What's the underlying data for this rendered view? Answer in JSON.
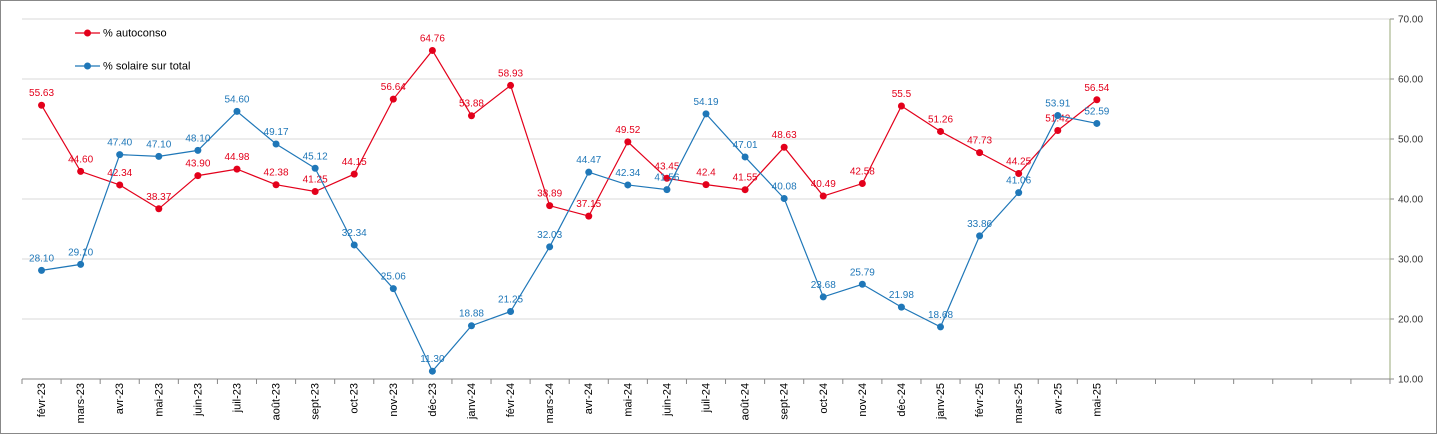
{
  "chart_data": {
    "type": "line",
    "categories": [
      "févr-23",
      "mars-23",
      "avr-23",
      "mai-23",
      "juin-23",
      "juil-23",
      "août-23",
      "sept-23",
      "oct-23",
      "nov-23",
      "déc-23",
      "janv-24",
      "févr-24",
      "mars-24",
      "avr-24",
      "mai-24",
      "juin-24",
      "juil-24",
      "août-24",
      "sept-24",
      "oct-24",
      "nov-24",
      "déc-24",
      "janv-25",
      "févr-25",
      "mars-25",
      "avr-25",
      "mai-25",
      null,
      null,
      null,
      null,
      null,
      null,
      null
    ],
    "series": [
      {
        "name": "% autoconso",
        "color": "#e3001b",
        "values": [
          55.63,
          44.6,
          42.34,
          38.37,
          43.9,
          44.98,
          42.38,
          41.25,
          44.15,
          56.64,
          64.76,
          53.88,
          58.93,
          38.89,
          37.15,
          49.52,
          43.45,
          42.4,
          41.55,
          48.63,
          40.49,
          42.58,
          55.5,
          51.26,
          47.73,
          44.25,
          51.42,
          56.54,
          null,
          null,
          null,
          null,
          null,
          null,
          null
        ],
        "value_labels": [
          "55.63",
          "44.60",
          "42.34",
          "38.37",
          "43.90",
          "44.98",
          "42.38",
          "41.25",
          "44.15",
          "56.64",
          "64.76",
          "53.88",
          "58.93",
          "38.89",
          "37.15",
          "49.52",
          "43.45",
          "42.4",
          "41.55",
          "48.63",
          "40.49",
          "42.58",
          "55.5",
          "51.26",
          "47.73",
          "44.25",
          "51.42",
          "56.54",
          null,
          null,
          null,
          null,
          null,
          null,
          null
        ]
      },
      {
        "name": "% solaire sur total",
        "color": "#1f77b8",
        "values": [
          28.1,
          29.1,
          47.4,
          47.1,
          48.1,
          54.6,
          49.17,
          45.12,
          32.34,
          25.06,
          11.3,
          18.88,
          21.25,
          32.03,
          44.47,
          42.34,
          41.56,
          54.19,
          47.01,
          40.08,
          23.68,
          25.79,
          21.98,
          18.68,
          33.86,
          41.06,
          53.91,
          52.59,
          null,
          null,
          null,
          null,
          null,
          null,
          null
        ],
        "value_labels": [
          "28.10",
          "29.10",
          "47.40",
          "47.10",
          "48.10",
          "54.60",
          "49.17",
          "45.12",
          "32.34",
          "25.06",
          "11.30",
          "18.88",
          "21.25",
          "32.03",
          "44.47",
          "42.34",
          "41.56",
          "54.19",
          "47.01",
          "40.08",
          "23.68",
          "25.79",
          "21.98",
          "18.68",
          "33.86",
          "41.06",
          "53.91",
          "52.59",
          null,
          null,
          null,
          null,
          null,
          null,
          null
        ]
      }
    ],
    "ylim": [
      10,
      70
    ],
    "yticks": [
      {
        "value": 10,
        "label": "10.00"
      },
      {
        "value": 20,
        "label": "20.00"
      },
      {
        "value": 30,
        "label": "30.00"
      },
      {
        "value": 40,
        "label": "40.00"
      },
      {
        "value": 50,
        "label": "50.00"
      },
      {
        "value": 60,
        "label": "60.00"
      },
      {
        "value": 70,
        "label": "70.00"
      }
    ],
    "grid": true,
    "legend": "top-left"
  }
}
